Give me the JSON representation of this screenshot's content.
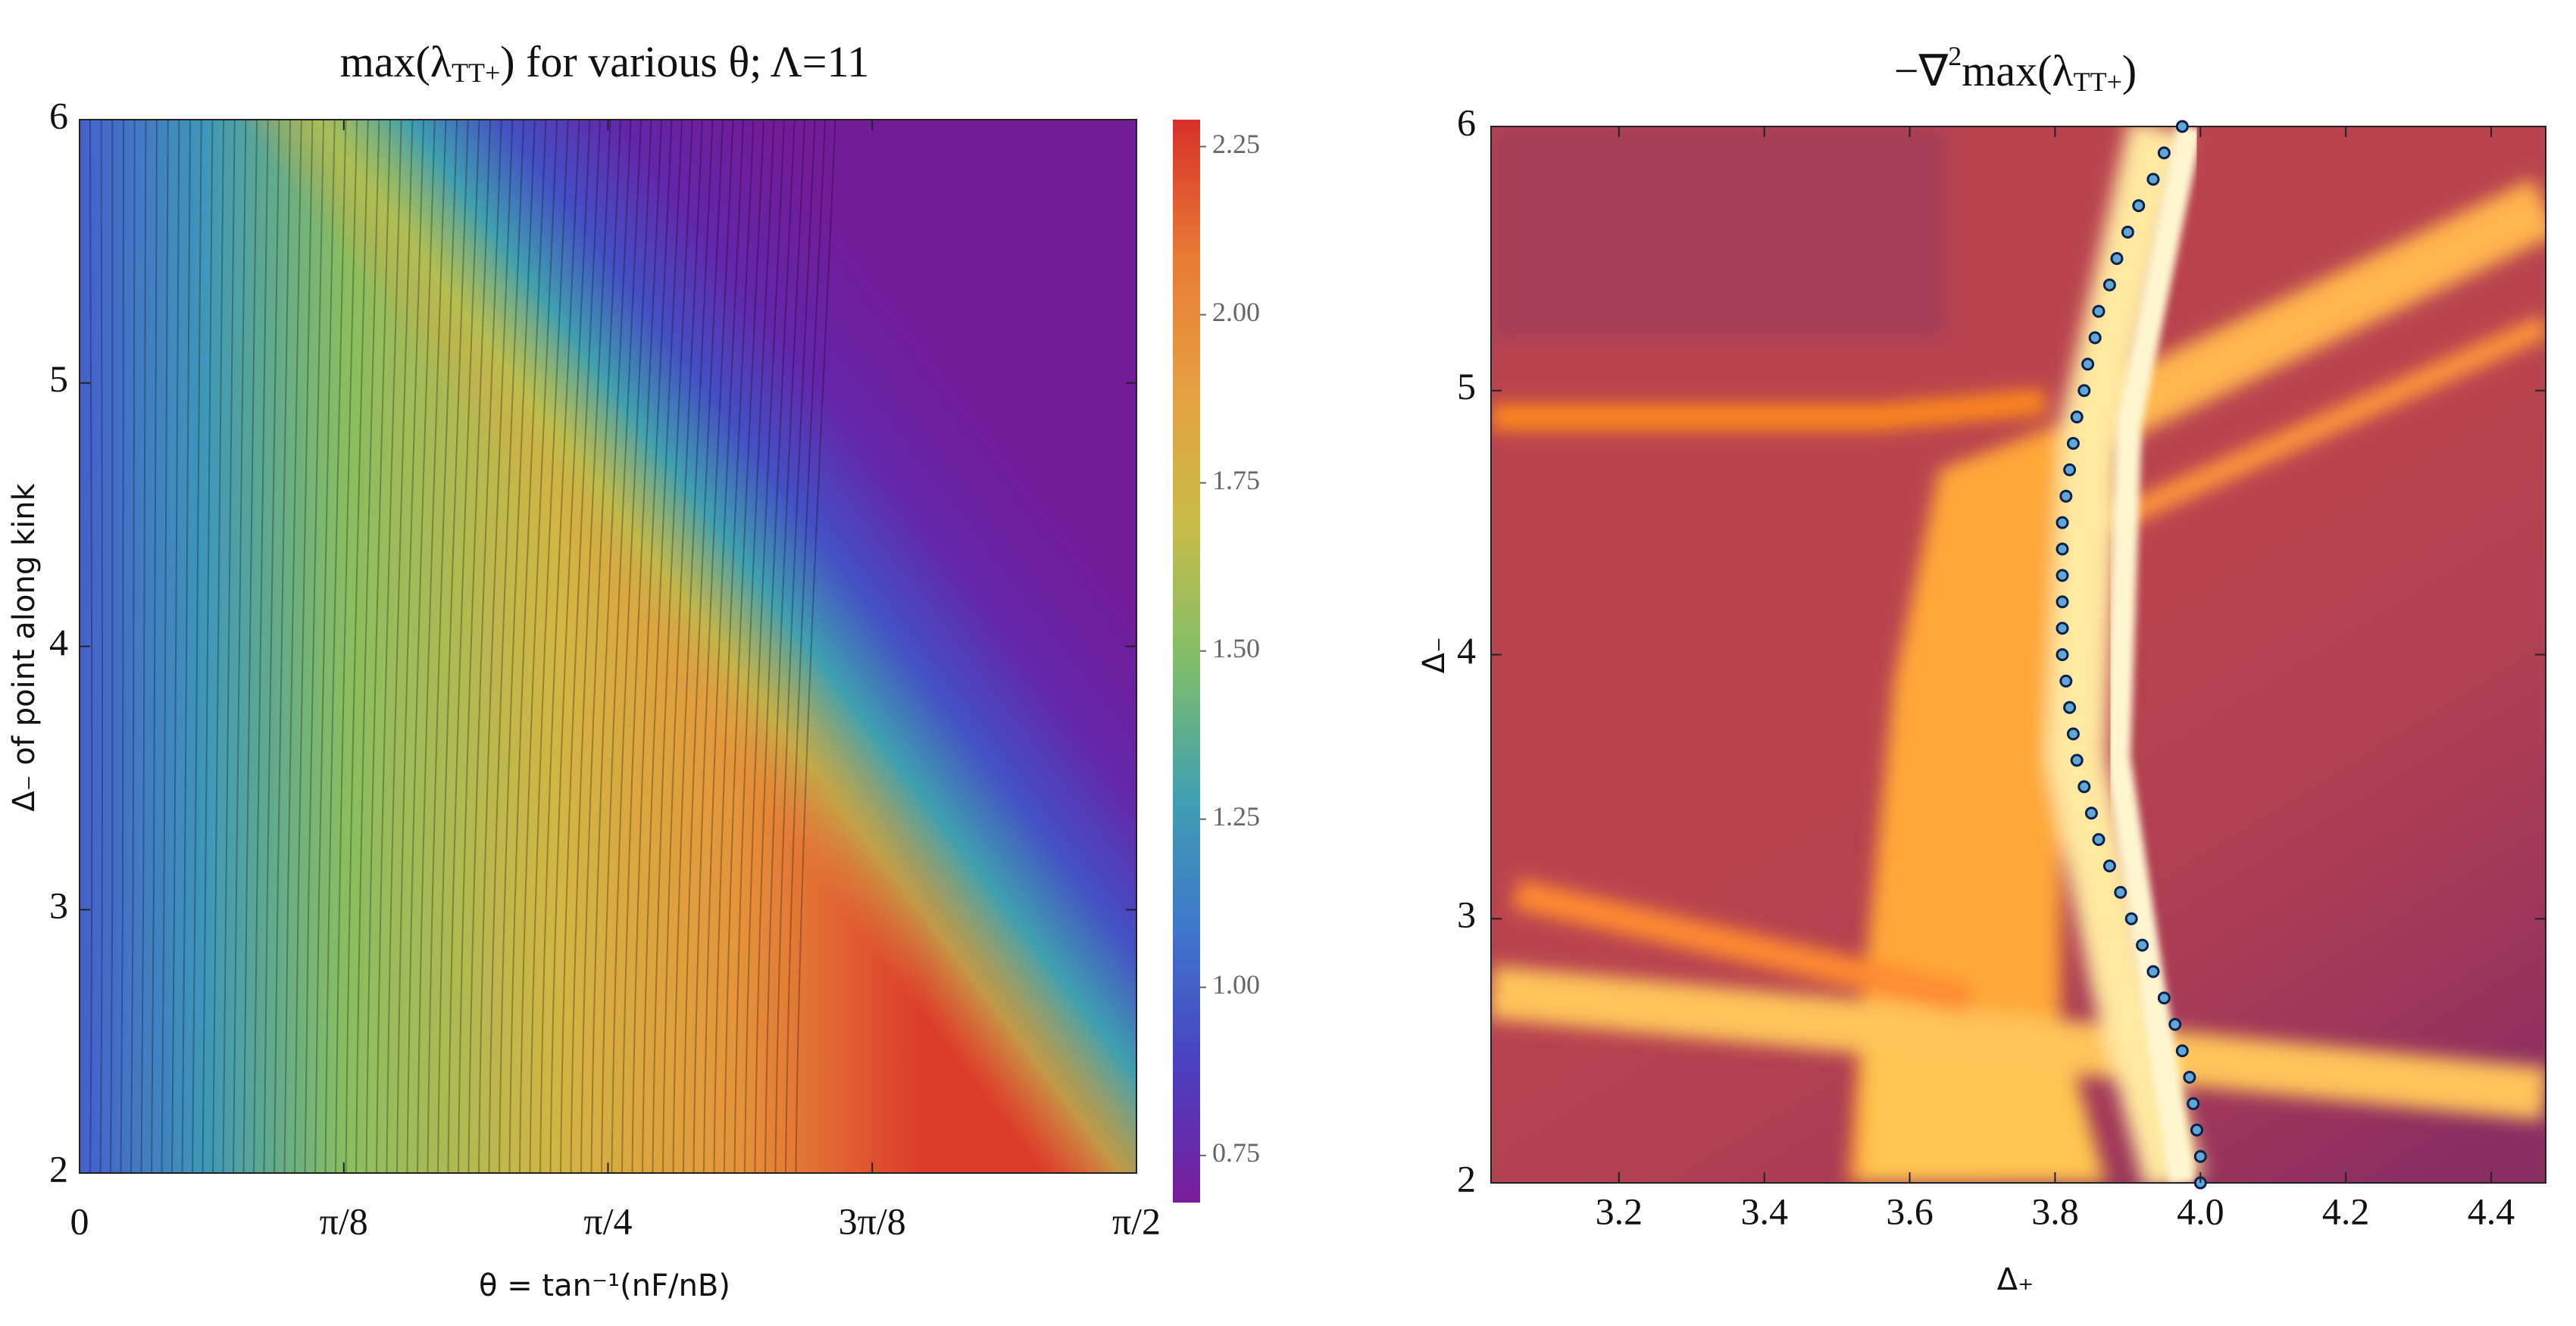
{
  "chart_data": [
    {
      "type": "contour",
      "title": [
        "max(λ",
        "TT+",
        ") for various θ; Λ=11"
      ],
      "xlabel": "θ = tan⁻¹(nF/nB)",
      "ylabel": "Δ₋ of point along kink",
      "xlim": [
        0,
        1.5708
      ],
      "xticks": [
        0,
        {
          "value": 0.3927,
          "label": "π/8"
        },
        {
          "value": 0.7854,
          "label": "π/4"
        },
        {
          "value": 1.1781,
          "label": "3π/8"
        },
        {
          "value": 1.5708,
          "label": "π/2"
        }
      ],
      "ylim": [
        2,
        6
      ],
      "yticks": [
        2,
        3,
        4,
        5,
        6
      ],
      "colorbar": {
        "clim": [
          0.68,
          2.29
        ],
        "ticks": [
          0.75,
          {
            "value": 1,
            "label": "1.00"
          },
          1.25,
          {
            "value": 1.5,
            "label": "1.50"
          },
          1.75,
          {
            "value": 2,
            "label": "2.00"
          },
          2.25
        ],
        "colors": [
          "#7a1c9a",
          "#4a3fc0",
          "#3d76cc",
          "#3fa0b0",
          "#7fbe68",
          "#c8bc48",
          "#e6a040",
          "#e87a34",
          "#d83028"
        ]
      }
    },
    {
      "type": "heatmap_scatter",
      "title": [
        "−∇",
        "2",
        "max(λ",
        "TT+",
        ")"
      ],
      "xlabel": "Δ₊",
      "ylabel": "Δ₋",
      "xlim": [
        3.024,
        4.475
      ],
      "xticks": [
        3.2,
        3.4,
        3.6,
        3.8,
        {
          "value": 4,
          "label": "4.0"
        },
        4.2,
        4.4
      ],
      "ylim": [
        2,
        6
      ],
      "yticks": [
        2,
        3,
        4,
        5,
        6
      ],
      "color": "#5fa8d3",
      "x": [
        4.0,
        4.0,
        3.995,
        3.99,
        3.985,
        3.975,
        3.965,
        3.95,
        3.935,
        3.92,
        3.905,
        3.89,
        3.875,
        3.86,
        3.85,
        3.84,
        3.83,
        3.825,
        3.82,
        3.815,
        3.81,
        3.81,
        3.81,
        3.81,
        3.81,
        3.81,
        3.815,
        3.82,
        3.825,
        3.83,
        3.84,
        3.845,
        3.855,
        3.86,
        3.875,
        3.885,
        3.9,
        3.915,
        3.935,
        3.95,
        3.975
      ],
      "values": [
        2.0,
        2.1,
        2.2,
        2.3,
        2.4,
        2.5,
        2.6,
        2.7,
        2.8,
        2.9,
        3.0,
        3.1,
        3.2,
        3.3,
        3.4,
        3.5,
        3.6,
        3.7,
        3.8,
        3.9,
        4.0,
        4.1,
        4.2,
        4.3,
        4.4,
        4.5,
        4.6,
        4.7,
        4.8,
        4.9,
        5.0,
        5.1,
        5.2,
        5.3,
        5.4,
        5.5,
        5.6,
        5.7,
        5.8,
        5.9,
        6.0
      ]
    }
  ]
}
